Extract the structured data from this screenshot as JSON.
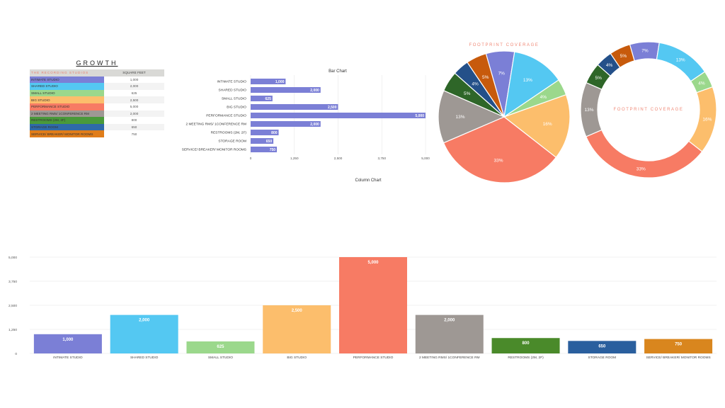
{
  "table": {
    "title": "GROWTH",
    "header": [
      "THE RECORDING STUDIOS",
      "SQUARE FEET"
    ],
    "rows": [
      {
        "name": "INTIMATE STUDIO",
        "value": "1,000",
        "color": "#7b7fd6"
      },
      {
        "name": "SHARED STUDIO",
        "value": "2,000",
        "color": "#54c8f2"
      },
      {
        "name": "SMALL STUDIO",
        "value": "625",
        "color": "#9bd88c"
      },
      {
        "name": "BIG STUDIO",
        "value": "2,500",
        "color": "#fcbe6c"
      },
      {
        "name": "PERFORMANCE STUDIO",
        "value": "5,000",
        "color": "#f77b64"
      },
      {
        "name": "2 MEETING RMS/ 1CONFERENCE RM",
        "value": "2,000",
        "color": "#9e9894"
      },
      {
        "name": "RESTROOMS (2M, 2F)",
        "value": "800",
        "color": "#4a9a3a"
      },
      {
        "name": "STORAGE ROOM",
        "value": "650",
        "color": "#2f6aa8"
      },
      {
        "name": "SERVICE/ BREAKER/ MONITOR ROOMS",
        "value": "750",
        "color": "#e07d1a"
      }
    ]
  },
  "chart_data": [
    {
      "type": "bar",
      "orientation": "horizontal",
      "title": "Bar Chart",
      "categories": [
        "INTIMATE STUDIO",
        "SHARED STUDIO",
        "SMALL STUDIO",
        "BIG STUDIO",
        "PERFORMANCE STUDIO",
        "2 MEETING RMS/ 1CONFERENCE RM",
        "RESTROOMS (2M, 2F)",
        "STORAGE ROOM",
        "SERVICE/ BREAKER/ MONITOR ROOMS"
      ],
      "values": [
        1000,
        2000,
        625,
        2500,
        5000,
        2000,
        800,
        650,
        750
      ],
      "value_labels": [
        "1,000",
        "2,000",
        "625",
        "2,500",
        "5,000",
        "2,000",
        "800",
        "650",
        "750"
      ],
      "xlim": [
        0,
        5000
      ],
      "ticks": [
        "0",
        "1,250",
        "2,500",
        "3,750",
        "5,000"
      ],
      "bar_color": "#7b7fd6",
      "grid": true
    },
    {
      "type": "pie",
      "title": "FOOTPRINT COVERAGE",
      "slices": [
        {
          "label": "INTIMATE STUDIO",
          "value": 7,
          "text": "7%",
          "color": "#7b7fd6"
        },
        {
          "label": "SHARED STUDIO",
          "value": 13,
          "text": "13%",
          "color": "#54c8f2"
        },
        {
          "label": "SMALL STUDIO",
          "value": 4,
          "text": "4%",
          "color": "#9bd88c"
        },
        {
          "label": "BIG STUDIO",
          "value": 16,
          "text": "16%",
          "color": "#fcbe6c"
        },
        {
          "label": "PERFORMANCE STUDIO",
          "value": 33,
          "text": "33%",
          "color": "#f77b64"
        },
        {
          "label": "2 MEETING RMS/ 1CONFERENCE RM",
          "value": 13,
          "text": "13%",
          "color": "#9e9894"
        },
        {
          "label": "RESTROOMS (2M, 2F)",
          "value": 5,
          "text": "5%",
          "color": "#2e6628"
        },
        {
          "label": "STORAGE ROOM",
          "value": 4,
          "text": "4%",
          "color": "#245089"
        },
        {
          "label": "SERVICE/ BREAKER/ MONITOR ROOMS",
          "value": 5,
          "text": "5%",
          "color": "#c75a0c"
        }
      ]
    },
    {
      "type": "pie",
      "style": "donut",
      "title": "FOOTPRINT COVERAGE",
      "slices": [
        {
          "label": "INTIMATE STUDIO",
          "value": 7,
          "text": "7%",
          "color": "#7b7fd6"
        },
        {
          "label": "SHARED STUDIO",
          "value": 13,
          "text": "13%",
          "color": "#54c8f2"
        },
        {
          "label": "SMALL STUDIO",
          "value": 4,
          "text": "4%",
          "color": "#9bd88c"
        },
        {
          "label": "BIG STUDIO",
          "value": 16,
          "text": "16%",
          "color": "#fcbe6c"
        },
        {
          "label": "PERFORMANCE STUDIO",
          "value": 33,
          "text": "33%",
          "color": "#f77b64"
        },
        {
          "label": "2 MEETING RMS/ 1CONFERENCE RM",
          "value": 13,
          "text": "13%",
          "color": "#9e9894"
        },
        {
          "label": "RESTROOMS (2M, 2F)",
          "value": 5,
          "text": "5%",
          "color": "#2e6628"
        },
        {
          "label": "STORAGE ROOM",
          "value": 4,
          "text": "4%",
          "color": "#245089"
        },
        {
          "label": "SERVICE/ BREAKER/ MONITOR ROOMS",
          "value": 5,
          "text": "5%",
          "color": "#c75a0c"
        }
      ]
    },
    {
      "type": "bar",
      "orientation": "vertical",
      "title": "Column Chart",
      "categories": [
        "INTIMATE STUDIO",
        "SHARED STUDIO",
        "SMALL STUDIO",
        "BIG STUDIO",
        "PERFORMANCE STUDIO",
        "2 MEETING RMS/ 1CONFERENCE RM",
        "RESTROOMS (2M, 2F)",
        "STORAGE ROOM",
        "SERVICE/ BREAKER/ MONITOR ROOMS"
      ],
      "values": [
        1000,
        2000,
        625,
        2500,
        5000,
        2000,
        800,
        650,
        750
      ],
      "value_labels": [
        "1,000",
        "2,000",
        "625",
        "2,500",
        "5,000",
        "2,000",
        "800",
        "650",
        "750"
      ],
      "colors": [
        "#7b7fd6",
        "#54c8f2",
        "#9bd88c",
        "#fcbe6c",
        "#f77b64",
        "#9e9894",
        "#4a8a2a",
        "#2a5f9e",
        "#d9861e"
      ],
      "ylim": [
        0,
        5000
      ],
      "ticks": [
        "0",
        "1,250",
        "2,500",
        "3,750",
        "5,000"
      ],
      "grid": true
    }
  ]
}
